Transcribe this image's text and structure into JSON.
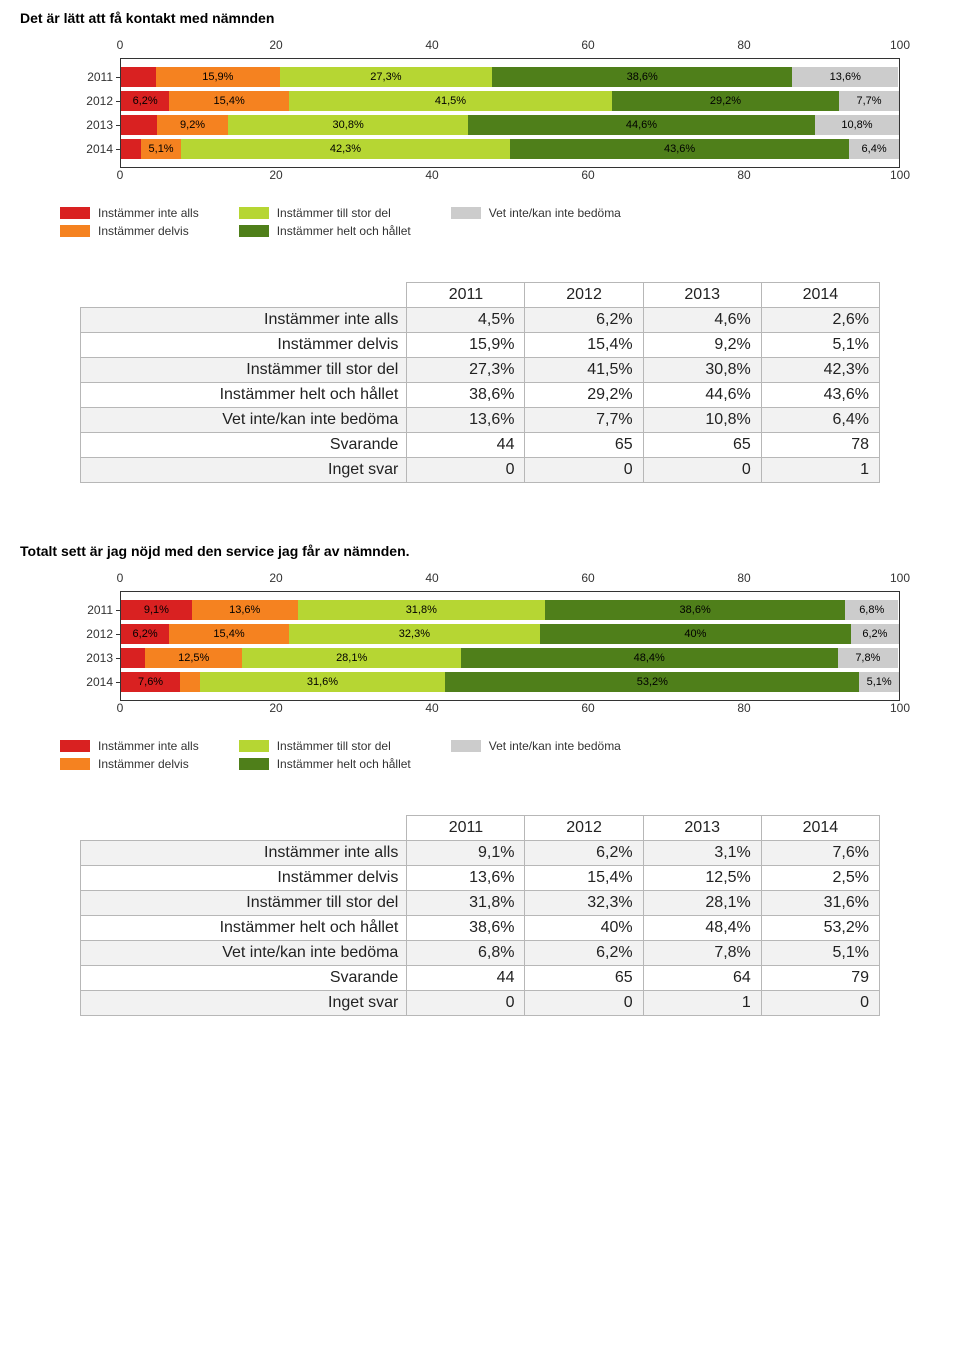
{
  "colors": {
    "c1": "#d92121",
    "c2": "#f58220",
    "c3": "#b6d633",
    "c4": "#4f7f1a",
    "c5": "#cccccc",
    "axis": "#333333",
    "text": "#333333",
    "table_border": "#b7b7b7",
    "table_alt": "#f2f2f2",
    "background": "#ffffff"
  },
  "legend_labels": {
    "c1": "Instämmer inte alls",
    "c2": "Instämmer delvis",
    "c3": "Instämmer till stor del",
    "c4": "Instämmer helt och hållet",
    "c5": "Vet inte/kan inte bedöma"
  },
  "axis_ticks": [
    0,
    20,
    40,
    60,
    80,
    100
  ],
  "sections": [
    {
      "type": "stacked-bar-horizontal",
      "title": "Det är lätt att få kontakt med nämnden",
      "xlim": [
        0,
        100
      ],
      "bars": [
        {
          "year": "2011",
          "segments": [
            {
              "key": "c1",
              "value": 4.5,
              "label": ""
            },
            {
              "key": "c2",
              "value": 15.9,
              "label": "15,9%"
            },
            {
              "key": "c3",
              "value": 27.3,
              "label": "27,3%"
            },
            {
              "key": "c4",
              "value": 38.6,
              "label": "38,6%"
            },
            {
              "key": "c5",
              "value": 13.6,
              "label": "13,6%"
            }
          ]
        },
        {
          "year": "2012",
          "segments": [
            {
              "key": "c1",
              "value": 6.2,
              "label": "6,2%"
            },
            {
              "key": "c2",
              "value": 15.4,
              "label": "15,4%"
            },
            {
              "key": "c3",
              "value": 41.5,
              "label": "41,5%"
            },
            {
              "key": "c4",
              "value": 29.2,
              "label": "29,2%"
            },
            {
              "key": "c5",
              "value": 7.7,
              "label": "7,7%"
            }
          ]
        },
        {
          "year": "2013",
          "segments": [
            {
              "key": "c1",
              "value": 4.6,
              "label": ""
            },
            {
              "key": "c2",
              "value": 9.2,
              "label": "9,2%"
            },
            {
              "key": "c3",
              "value": 30.8,
              "label": "30,8%"
            },
            {
              "key": "c4",
              "value": 44.6,
              "label": "44,6%"
            },
            {
              "key": "c5",
              "value": 10.8,
              "label": "10,8%"
            }
          ]
        },
        {
          "year": "2014",
          "segments": [
            {
              "key": "c1",
              "value": 2.6,
              "label": ""
            },
            {
              "key": "c2",
              "value": 5.1,
              "label": "5,1%"
            },
            {
              "key": "c3",
              "value": 42.3,
              "label": "42,3%"
            },
            {
              "key": "c4",
              "value": 43.6,
              "label": "43,6%"
            },
            {
              "key": "c5",
              "value": 6.4,
              "label": "6,4%"
            }
          ]
        }
      ],
      "table": {
        "years": [
          "2011",
          "2012",
          "2013",
          "2014"
        ],
        "rows": [
          {
            "label": "Instämmer inte alls",
            "cells": [
              "4,5%",
              "6,2%",
              "4,6%",
              "2,6%"
            ]
          },
          {
            "label": "Instämmer delvis",
            "cells": [
              "15,9%",
              "15,4%",
              "9,2%",
              "5,1%"
            ]
          },
          {
            "label": "Instämmer till stor del",
            "cells": [
              "27,3%",
              "41,5%",
              "30,8%",
              "42,3%"
            ]
          },
          {
            "label": "Instämmer helt och hållet",
            "cells": [
              "38,6%",
              "29,2%",
              "44,6%",
              "43,6%"
            ]
          },
          {
            "label": "Vet inte/kan inte bedöma",
            "cells": [
              "13,6%",
              "7,7%",
              "10,8%",
              "6,4%"
            ]
          },
          {
            "label": "Svarande",
            "cells": [
              "44",
              "65",
              "65",
              "78"
            ]
          },
          {
            "label": "Inget svar",
            "cells": [
              "0",
              "0",
              "0",
              "1"
            ]
          }
        ]
      }
    },
    {
      "type": "stacked-bar-horizontal",
      "title": "Totalt sett är jag nöjd med den service jag får av nämnden.",
      "xlim": [
        0,
        100
      ],
      "bars": [
        {
          "year": "2011",
          "segments": [
            {
              "key": "c1",
              "value": 9.1,
              "label": "9,1%"
            },
            {
              "key": "c2",
              "value": 13.6,
              "label": "13,6%"
            },
            {
              "key": "c3",
              "value": 31.8,
              "label": "31,8%"
            },
            {
              "key": "c4",
              "value": 38.6,
              "label": "38,6%"
            },
            {
              "key": "c5",
              "value": 6.8,
              "label": "6,8%"
            }
          ]
        },
        {
          "year": "2012",
          "segments": [
            {
              "key": "c1",
              "value": 6.2,
              "label": "6,2%"
            },
            {
              "key": "c2",
              "value": 15.4,
              "label": "15,4%"
            },
            {
              "key": "c3",
              "value": 32.3,
              "label": "32,3%"
            },
            {
              "key": "c4",
              "value": 40.0,
              "label": "40%"
            },
            {
              "key": "c5",
              "value": 6.2,
              "label": "6,2%"
            }
          ]
        },
        {
          "year": "2013",
          "segments": [
            {
              "key": "c1",
              "value": 3.1,
              "label": ""
            },
            {
              "key": "c2",
              "value": 12.5,
              "label": "12,5%"
            },
            {
              "key": "c3",
              "value": 28.1,
              "label": "28,1%"
            },
            {
              "key": "c4",
              "value": 48.4,
              "label": "48,4%"
            },
            {
              "key": "c5",
              "value": 7.8,
              "label": "7,8%"
            }
          ]
        },
        {
          "year": "2014",
          "segments": [
            {
              "key": "c1",
              "value": 7.6,
              "label": "7,6%"
            },
            {
              "key": "c2",
              "value": 2.5,
              "label": ""
            },
            {
              "key": "c3",
              "value": 31.6,
              "label": "31,6%"
            },
            {
              "key": "c4",
              "value": 53.2,
              "label": "53,2%"
            },
            {
              "key": "c5",
              "value": 5.1,
              "label": "5,1%"
            }
          ]
        }
      ],
      "table": {
        "years": [
          "2011",
          "2012",
          "2013",
          "2014"
        ],
        "rows": [
          {
            "label": "Instämmer inte alls",
            "cells": [
              "9,1%",
              "6,2%",
              "3,1%",
              "7,6%"
            ]
          },
          {
            "label": "Instämmer delvis",
            "cells": [
              "13,6%",
              "15,4%",
              "12,5%",
              "2,5%"
            ]
          },
          {
            "label": "Instämmer till stor del",
            "cells": [
              "31,8%",
              "32,3%",
              "28,1%",
              "31,6%"
            ]
          },
          {
            "label": "Instämmer helt och hållet",
            "cells": [
              "38,6%",
              "40%",
              "48,4%",
              "53,2%"
            ]
          },
          {
            "label": "Vet inte/kan inte bedöma",
            "cells": [
              "6,8%",
              "6,2%",
              "7,8%",
              "5,1%"
            ]
          },
          {
            "label": "Svarande",
            "cells": [
              "44",
              "65",
              "64",
              "79"
            ]
          },
          {
            "label": "Inget svar",
            "cells": [
              "0",
              "0",
              "1",
              "0"
            ]
          }
        ]
      }
    }
  ]
}
